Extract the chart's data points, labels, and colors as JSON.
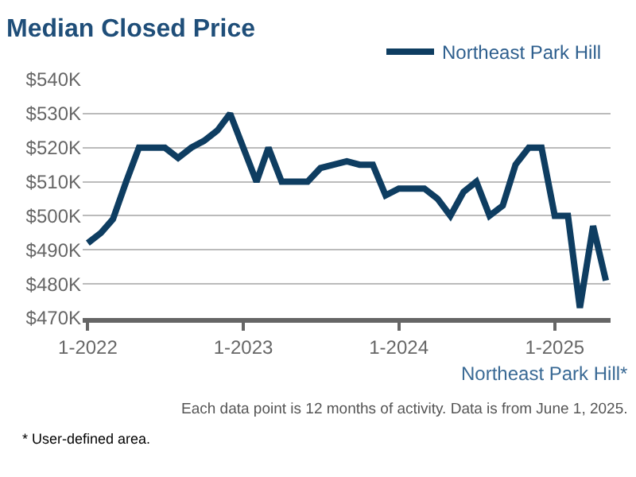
{
  "chart_data": {
    "type": "line",
    "title": "Median Closed Price",
    "x": [
      "2022-01",
      "2022-02",
      "2022-03",
      "2022-04",
      "2022-05",
      "2022-06",
      "2022-07",
      "2022-08",
      "2022-09",
      "2022-10",
      "2022-11",
      "2022-12",
      "2023-01",
      "2023-02",
      "2023-03",
      "2023-04",
      "2023-05",
      "2023-06",
      "2023-07",
      "2023-08",
      "2023-09",
      "2023-10",
      "2023-11",
      "2023-12",
      "2024-01",
      "2024-02",
      "2024-03",
      "2024-04",
      "2024-05",
      "2024-06",
      "2024-07",
      "2024-08",
      "2024-09",
      "2024-10",
      "2024-11",
      "2024-12",
      "2025-01",
      "2025-02",
      "2025-03",
      "2025-04",
      "2025-05"
    ],
    "series": [
      {
        "name": "Northeast Park Hill",
        "color": "#0e3d61",
        "values": [
          492,
          495,
          499,
          510,
          520,
          520,
          520,
          517,
          520,
          522,
          525,
          530,
          520,
          510,
          520,
          510,
          510,
          510,
          514,
          515,
          516,
          515,
          515,
          506,
          508,
          508,
          508,
          505,
          500,
          507,
          510,
          500,
          503,
          515,
          520,
          520,
          500,
          500,
          473,
          497,
          481
        ]
      }
    ],
    "xlim": [
      "2021-12-20",
      "2025-05-12"
    ],
    "xticks": [
      {
        "value": "2022-01",
        "label": "1-2022"
      },
      {
        "value": "2023-01",
        "label": "1-2023"
      },
      {
        "value": "2024-01",
        "label": "1-2024"
      },
      {
        "value": "2025-01",
        "label": "1-2025"
      }
    ],
    "ylim": [
      470,
      540
    ],
    "yticks": [
      {
        "value": 470,
        "label": "$470K"
      },
      {
        "value": 480,
        "label": "$480K"
      },
      {
        "value": 490,
        "label": "$490K"
      },
      {
        "value": 500,
        "label": "$500K"
      },
      {
        "value": 510,
        "label": "$510K"
      },
      {
        "value": 520,
        "label": "$520K"
      },
      {
        "value": 530,
        "label": "$530K"
      },
      {
        "value": 540,
        "label": "$540K"
      }
    ],
    "grid": "y",
    "legend": "top right",
    "marker": "none",
    "line_style": "solid",
    "annotations": [
      "Northeast Park Hill*",
      "Each data point is 12 months of activity. Data is from June 1, 2025.",
      "* User-defined area."
    ]
  }
}
